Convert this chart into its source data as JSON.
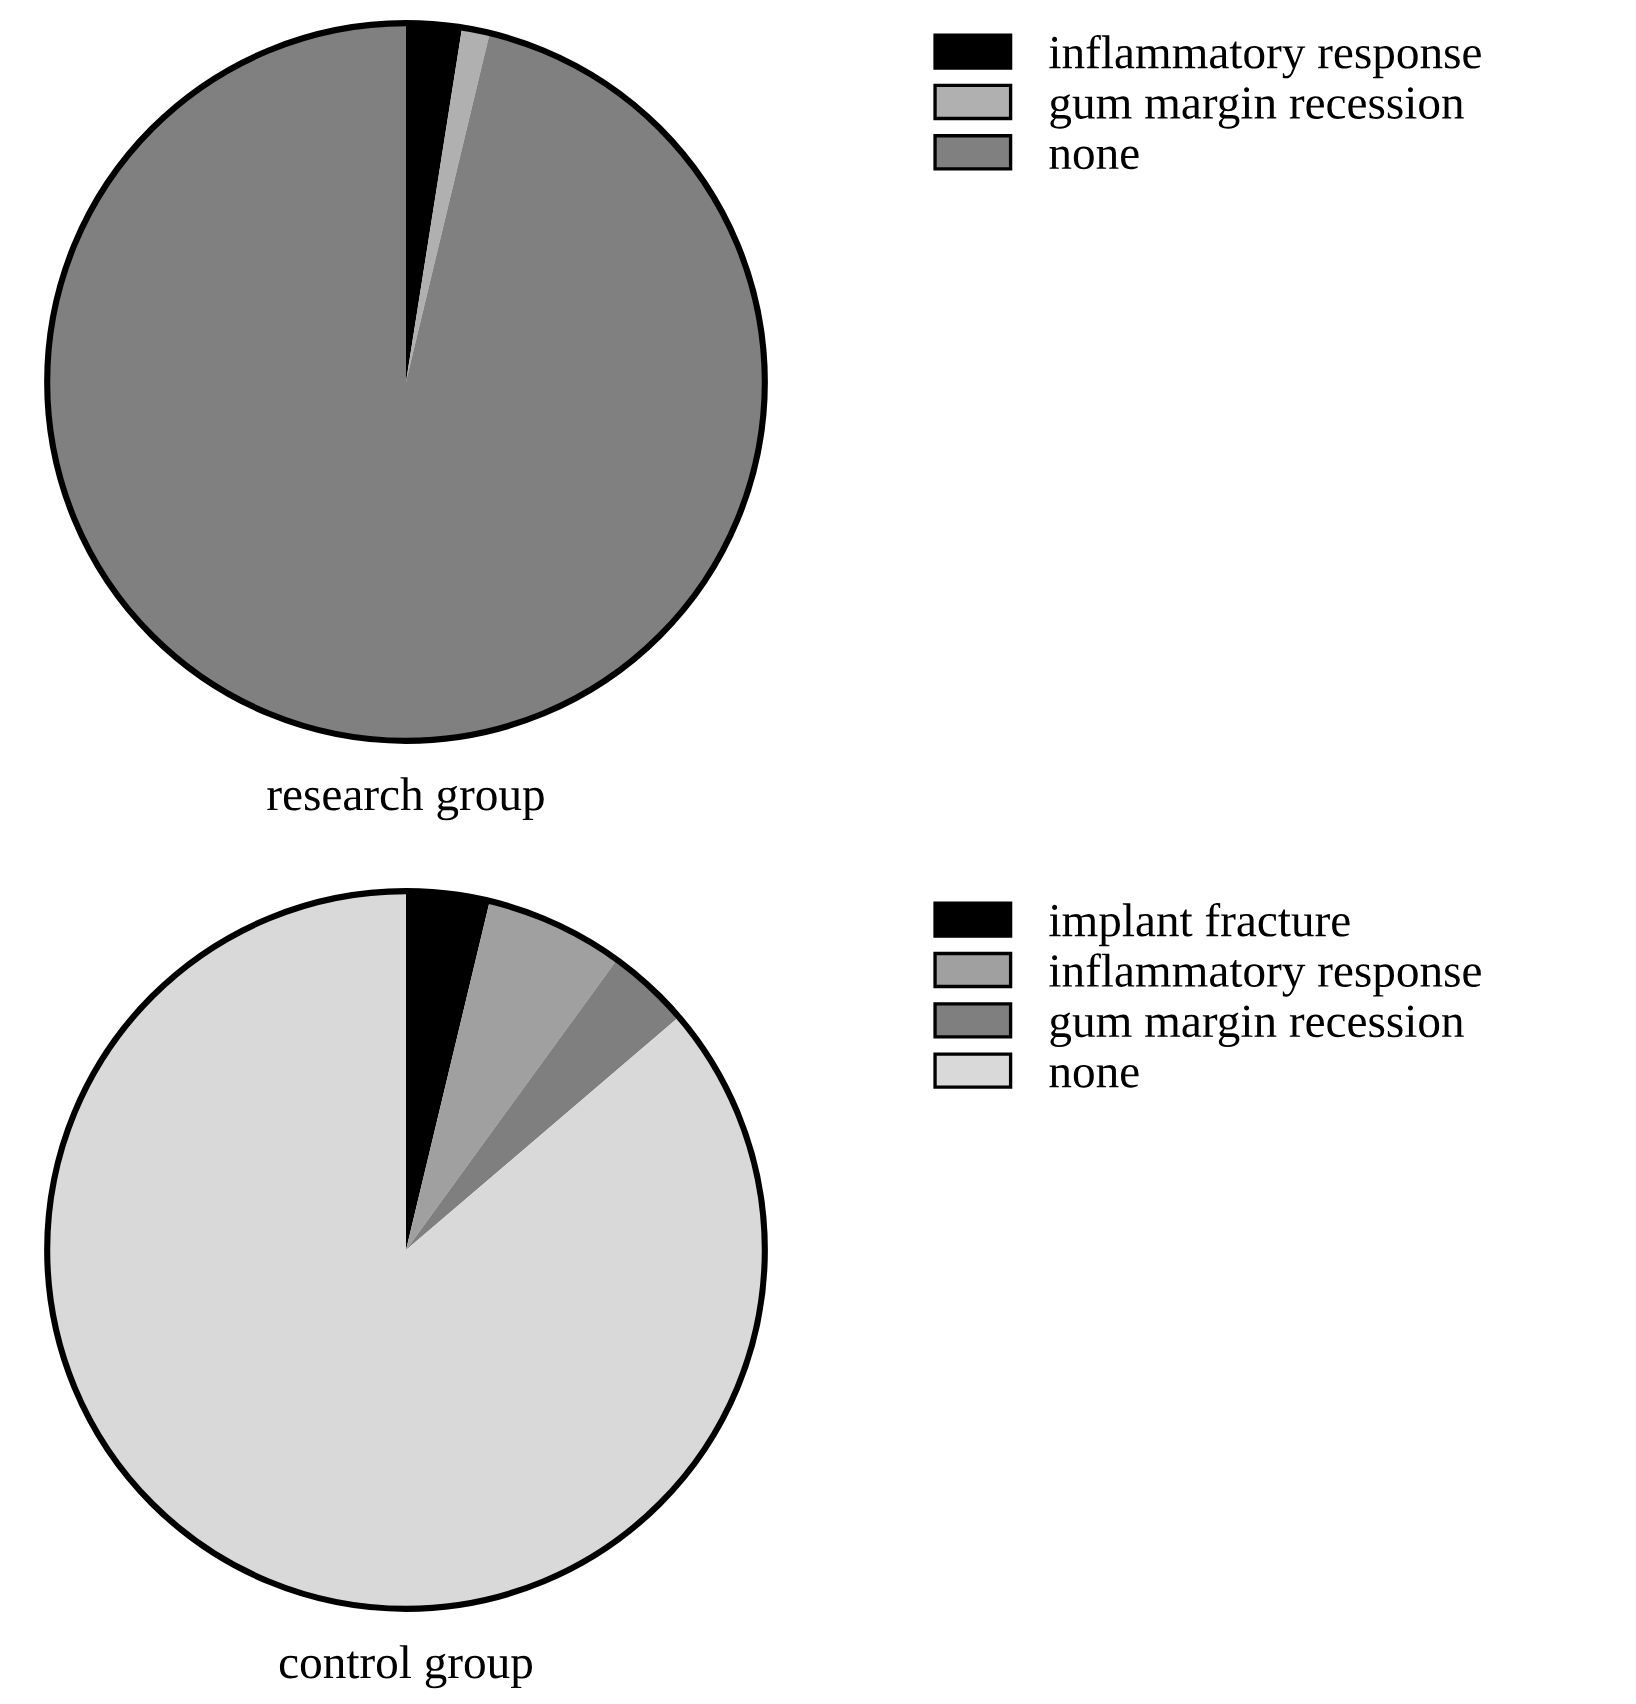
{
  "chart_data": [
    {
      "type": "pie",
      "title": "research group",
      "categories": [
        "inflammatory response",
        "gum margin recession",
        "none"
      ],
      "values": [
        2.5,
        1.25,
        96.25
      ],
      "colors": [
        "#000000",
        "#b0b0b0",
        "#808080"
      ],
      "legend": "top right"
    },
    {
      "type": "pie",
      "title": "control group",
      "categories": [
        "implant fracture",
        "inflammatory response",
        "gum margin recession",
        "none"
      ],
      "values": [
        3.75,
        6.25,
        3.75,
        86.25
      ],
      "colors": [
        "#000000",
        "#a0a0a0",
        "#7f7f7f",
        "#d9d9d9"
      ],
      "legend": "top right"
    }
  ]
}
